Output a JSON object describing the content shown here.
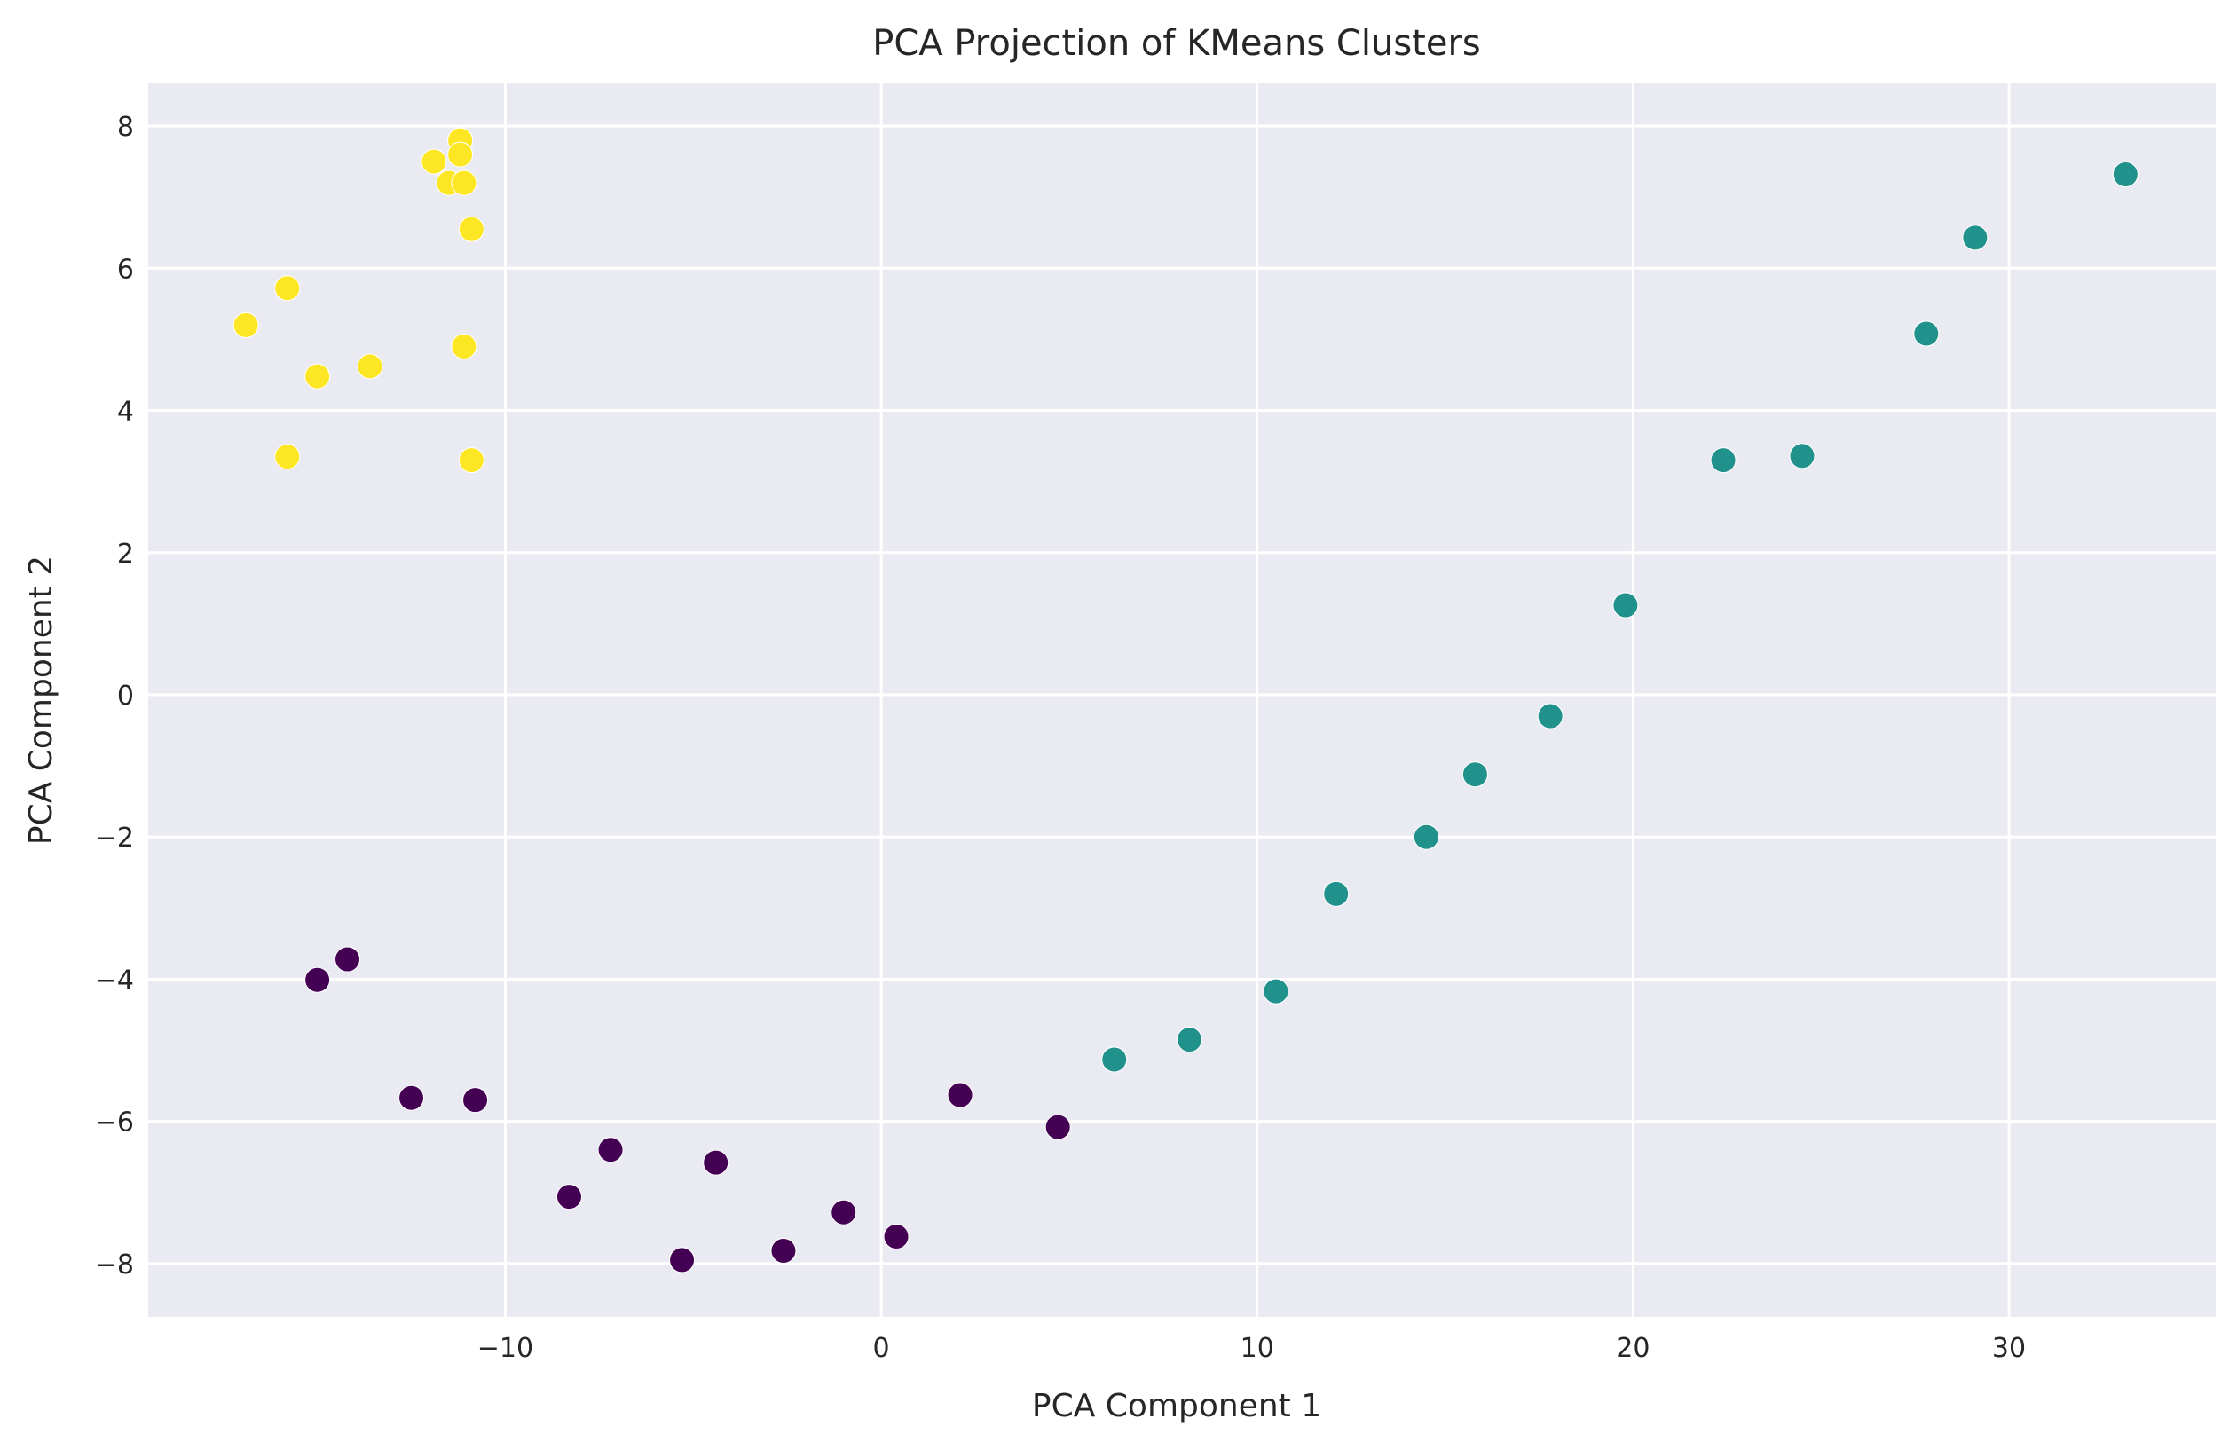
{
  "chart_data": {
    "type": "scatter",
    "title": "PCA Projection of KMeans Clusters",
    "xlabel": "PCA Component 1",
    "ylabel": "PCA Component 2",
    "xlim": [
      -19.5,
      35.5
    ],
    "ylim": [
      -8.75,
      8.6
    ],
    "xticks": [
      -10,
      0,
      10,
      20,
      30
    ],
    "xtick_labels": [
      "−10",
      "0",
      "10",
      "20",
      "30"
    ],
    "yticks": [
      -8,
      -6,
      -4,
      -2,
      0,
      2,
      4,
      6,
      8
    ],
    "ytick_labels": [
      "−8",
      "−6",
      "−4",
      "−2",
      "0",
      "2",
      "4",
      "6",
      "8"
    ],
    "grid": true,
    "legend": "none",
    "colors": {
      "background": "#eaeaf2",
      "grid": "#ffffff",
      "cluster_0": "#440154",
      "cluster_1": "#21918c",
      "cluster_2": "#fde725"
    },
    "series": [
      {
        "color_key": "cluster_2",
        "points": [
          [
            -11.9,
            7.5
          ],
          [
            -11.5,
            7.2
          ],
          [
            -11.2,
            7.8
          ],
          [
            -11.2,
            7.6
          ],
          [
            -11.1,
            7.2
          ],
          [
            -10.9,
            6.55
          ],
          [
            -15.8,
            5.72
          ],
          [
            -16.9,
            5.2
          ],
          [
            -13.6,
            4.62
          ],
          [
            -15.0,
            4.48
          ],
          [
            -11.1,
            4.9
          ],
          [
            -15.8,
            3.35
          ],
          [
            -10.9,
            3.3
          ]
        ]
      },
      {
        "color_key": "cluster_1",
        "points": [
          [
            33.1,
            7.32
          ],
          [
            29.1,
            6.43
          ],
          [
            27.8,
            5.08
          ],
          [
            24.5,
            3.36
          ],
          [
            22.4,
            3.3
          ],
          [
            19.8,
            1.26
          ],
          [
            17.8,
            -0.3
          ],
          [
            15.8,
            -1.12
          ],
          [
            14.5,
            -2.0
          ],
          [
            12.1,
            -2.8
          ],
          [
            10.5,
            -4.17
          ],
          [
            8.2,
            -4.85
          ],
          [
            6.2,
            -5.13
          ]
        ]
      },
      {
        "color_key": "cluster_0",
        "points": [
          [
            -14.2,
            -3.72
          ],
          [
            -15.0,
            -4.01
          ],
          [
            -12.5,
            -5.67
          ],
          [
            -10.8,
            -5.7
          ],
          [
            -7.2,
            -6.4
          ],
          [
            -4.4,
            -6.58
          ],
          [
            -8.3,
            -7.06
          ],
          [
            -1.0,
            -7.28
          ],
          [
            0.4,
            -7.62
          ],
          [
            2.1,
            -5.63
          ],
          [
            4.7,
            -6.08
          ],
          [
            -2.6,
            -7.82
          ],
          [
            -5.3,
            -7.95
          ]
        ]
      }
    ]
  }
}
